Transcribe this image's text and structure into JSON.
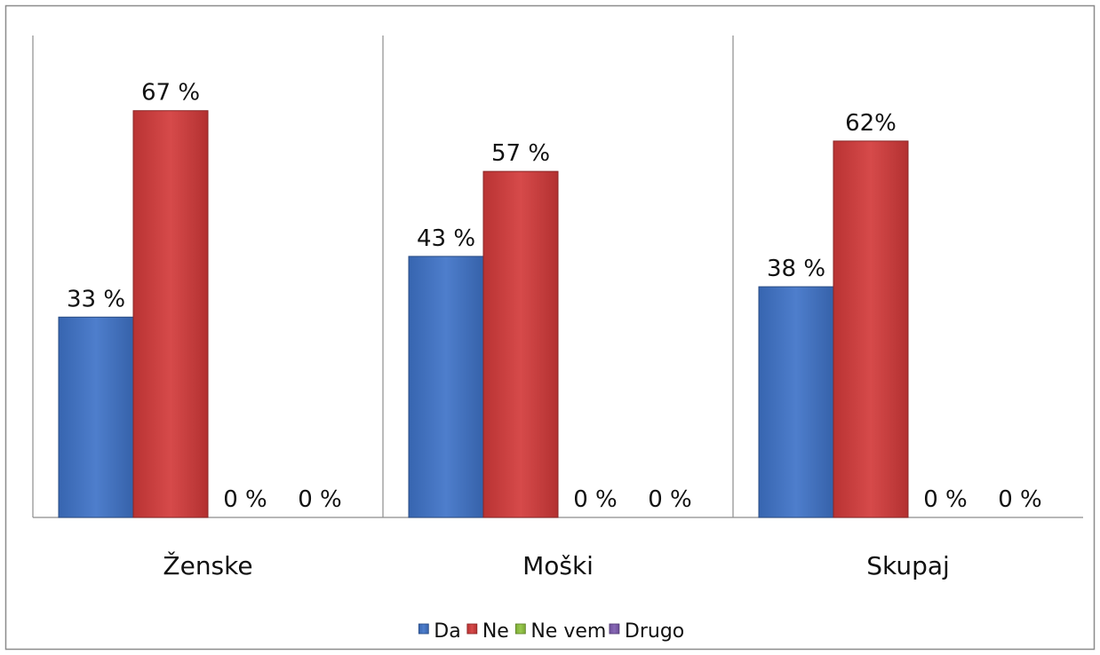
{
  "chart_data": {
    "type": "bar",
    "categories": [
      "Ženske",
      "Moški",
      "Skupaj"
    ],
    "series": [
      {
        "name": "Da",
        "color": "#3f73c8",
        "values": [
          33,
          43,
          38
        ],
        "labels": [
          "33 %",
          "43 %",
          "38 %"
        ]
      },
      {
        "name": "Ne",
        "color": "#d23a3a",
        "values": [
          67,
          57,
          62
        ],
        "labels": [
          "67 %",
          "57 %",
          "62%"
        ]
      },
      {
        "name": "Ne vem",
        "color": "#8fc43e",
        "values": [
          0,
          0,
          0
        ],
        "labels": [
          "0 %",
          "0 %",
          "0 %"
        ]
      },
      {
        "name": "Drugo",
        "color": "#7e5bb0",
        "values": [
          0,
          0,
          0
        ],
        "labels": [
          "0 %",
          "0 %",
          "0 %"
        ]
      }
    ],
    "ylim": [
      0,
      100
    ],
    "grid": false,
    "legend_position": "bottom"
  }
}
